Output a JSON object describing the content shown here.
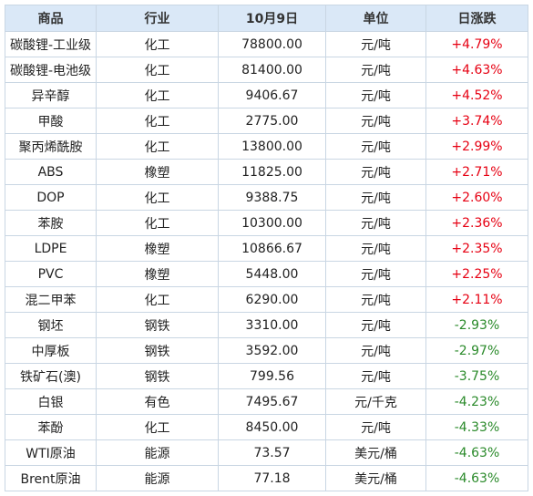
{
  "headers": {
    "name": "商品",
    "industry": "行业",
    "price": "10月9日",
    "unit": "单位",
    "change": "日涨跌"
  },
  "rows": [
    {
      "name": "碳酸锂-工业级",
      "industry": "化工",
      "price": "78800.00",
      "unit": "元/吨",
      "change": "+4.79%",
      "dir": "up"
    },
    {
      "name": "碳酸锂-电池级",
      "industry": "化工",
      "price": "81400.00",
      "unit": "元/吨",
      "change": "+4.63%",
      "dir": "up"
    },
    {
      "name": "异辛醇",
      "industry": "化工",
      "price": "9406.67",
      "unit": "元/吨",
      "change": "+4.52%",
      "dir": "up"
    },
    {
      "name": "甲酸",
      "industry": "化工",
      "price": "2775.00",
      "unit": "元/吨",
      "change": "+3.74%",
      "dir": "up"
    },
    {
      "name": "聚丙烯酰胺",
      "industry": "化工",
      "price": "13800.00",
      "unit": "元/吨",
      "change": "+2.99%",
      "dir": "up"
    },
    {
      "name": "ABS",
      "industry": "橡塑",
      "price": "11825.00",
      "unit": "元/吨",
      "change": "+2.71%",
      "dir": "up"
    },
    {
      "name": "DOP",
      "industry": "化工",
      "price": "9388.75",
      "unit": "元/吨",
      "change": "+2.60%",
      "dir": "up"
    },
    {
      "name": "苯胺",
      "industry": "化工",
      "price": "10300.00",
      "unit": "元/吨",
      "change": "+2.36%",
      "dir": "up"
    },
    {
      "name": "LDPE",
      "industry": "橡塑",
      "price": "10866.67",
      "unit": "元/吨",
      "change": "+2.35%",
      "dir": "up"
    },
    {
      "name": "PVC",
      "industry": "橡塑",
      "price": "5448.00",
      "unit": "元/吨",
      "change": "+2.25%",
      "dir": "up"
    },
    {
      "name": "混二甲苯",
      "industry": "化工",
      "price": "6290.00",
      "unit": "元/吨",
      "change": "+2.11%",
      "dir": "up"
    },
    {
      "name": "钢坯",
      "industry": "钢铁",
      "price": "3310.00",
      "unit": "元/吨",
      "change": "-2.93%",
      "dir": "down"
    },
    {
      "name": "中厚板",
      "industry": "钢铁",
      "price": "3592.00",
      "unit": "元/吨",
      "change": "-2.97%",
      "dir": "down"
    },
    {
      "name": "铁矿石(澳)",
      "industry": "钢铁",
      "price": "799.56",
      "unit": "元/吨",
      "change": "-3.75%",
      "dir": "down"
    },
    {
      "name": "白银",
      "industry": "有色",
      "price": "7495.67",
      "unit": "元/千克",
      "change": "-4.23%",
      "dir": "down"
    },
    {
      "name": "苯酚",
      "industry": "化工",
      "price": "8450.00",
      "unit": "元/吨",
      "change": "-4.33%",
      "dir": "down"
    },
    {
      "name": "WTI原油",
      "industry": "能源",
      "price": "73.57",
      "unit": "美元/桶",
      "change": "-4.63%",
      "dir": "down"
    },
    {
      "name": "Brent原油",
      "industry": "能源",
      "price": "77.18",
      "unit": "美元/桶",
      "change": "-4.63%",
      "dir": "down"
    }
  ],
  "colors": {
    "up": "#e60012",
    "down": "#2a8a2a",
    "header_bg": "#dae8f7",
    "border": "#c9d6e3"
  }
}
